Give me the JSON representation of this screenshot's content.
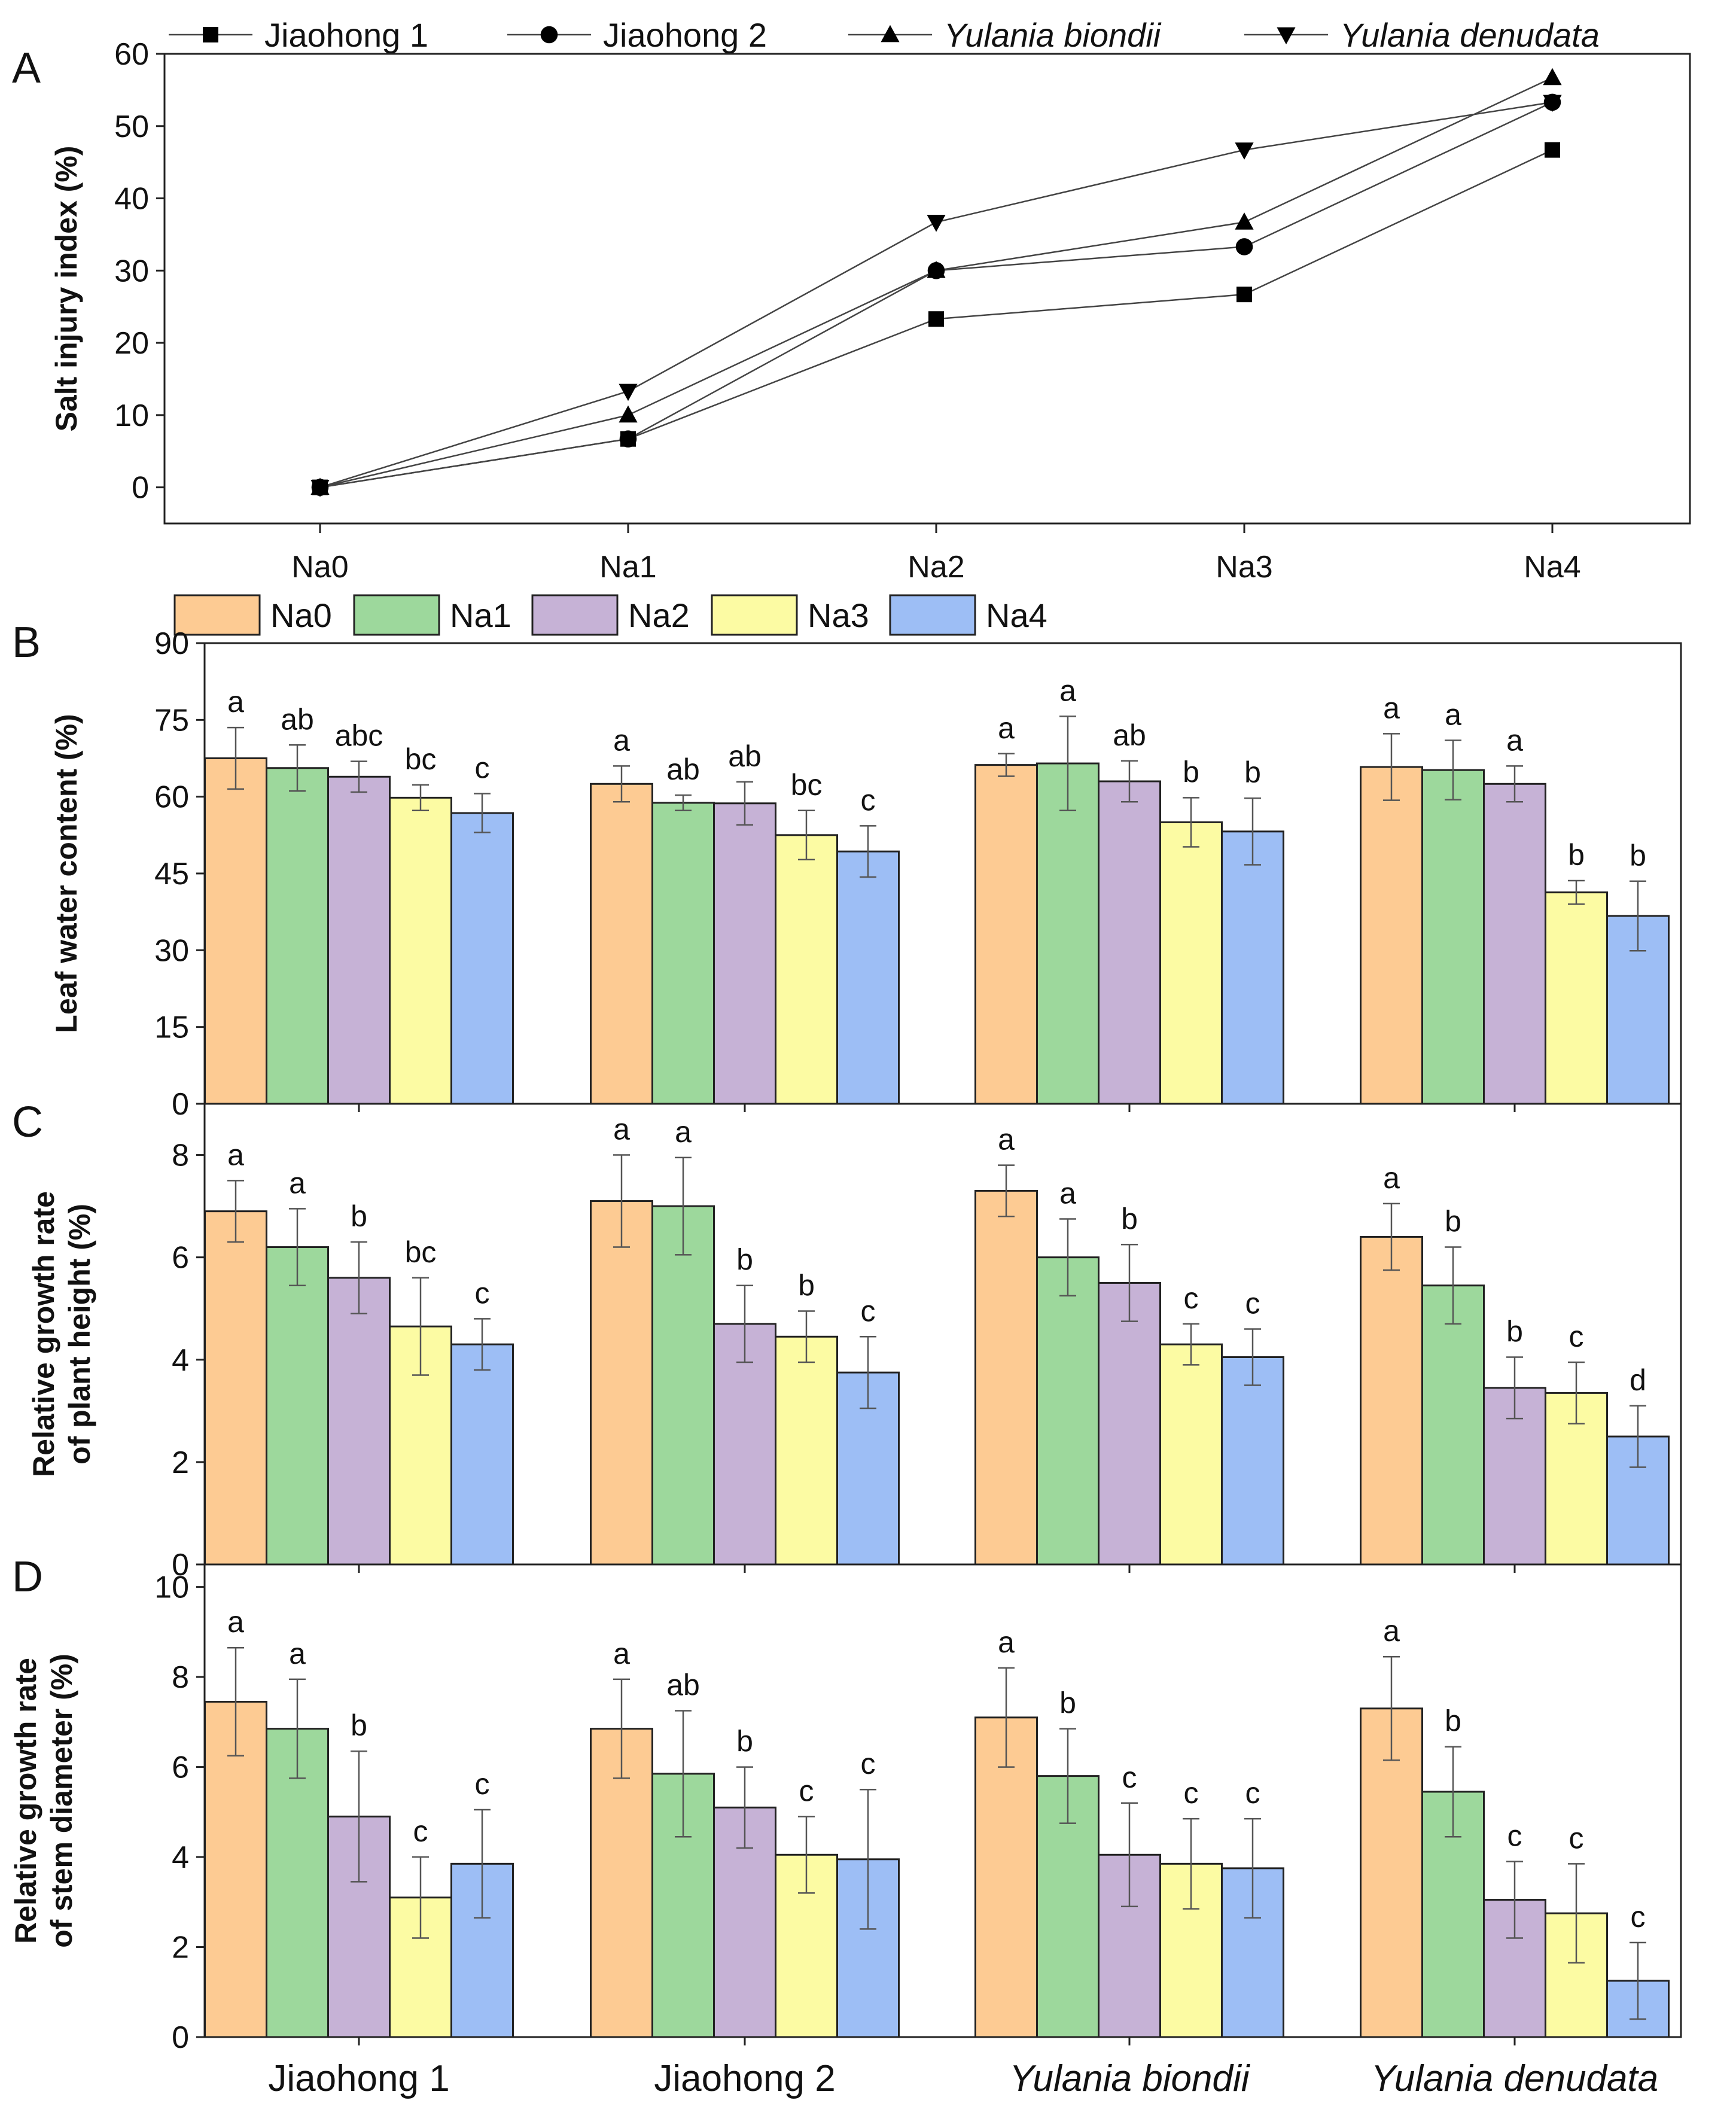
{
  "colors": {
    "Na0": "#FDCB93",
    "Na1": "#9DD89C",
    "Na2": "#C6B2D6",
    "Na3": "#FCFBA3",
    "Na4": "#9DBEF5"
  },
  "panelA": {
    "letter": "A",
    "legend": [
      {
        "label": "Jiaohong 1",
        "marker": "square",
        "italic": false
      },
      {
        "label": "Jiaohong 2",
        "marker": "circle",
        "italic": false
      },
      {
        "label": "Yulania biondii",
        "marker": "triangle-up",
        "italic": true
      },
      {
        "label": "Yulania denudata",
        "marker": "triangle-down",
        "italic": true
      }
    ]
  },
  "panelB": {
    "letter": "B"
  },
  "panelC": {
    "letter": "C"
  },
  "panelD": {
    "letter": "D"
  },
  "bar_legend": [
    "Na0",
    "Na1",
    "Na2",
    "Na3",
    "Na4"
  ],
  "chart_data": [
    {
      "id": "A",
      "type": "line",
      "title": "",
      "xlabel": "",
      "ylabel": "Salt injury index (%)",
      "categories": [
        "Na0",
        "Na1",
        "Na2",
        "Na3",
        "Na4"
      ],
      "ylim": [
        -5,
        60
      ],
      "yticks": [
        0,
        10,
        20,
        30,
        40,
        50,
        60
      ],
      "series": [
        {
          "name": "Jiaohong 1",
          "marker": "square",
          "values": [
            0,
            6.7,
            23.3,
            26.7,
            46.7
          ]
        },
        {
          "name": "Jiaohong 2",
          "marker": "circle",
          "values": [
            0,
            6.7,
            30.0,
            33.3,
            53.3
          ]
        },
        {
          "name": "Yulania biondii",
          "marker": "triangle-up",
          "values": [
            0,
            10.0,
            30.0,
            36.7,
            56.7
          ]
        },
        {
          "name": "Yulania denudata",
          "marker": "triangle-down",
          "values": [
            0,
            13.3,
            36.7,
            46.7,
            53.3
          ]
        }
      ]
    },
    {
      "id": "B",
      "type": "bar",
      "ylabel": "Leaf water content (%)",
      "xlabel": "",
      "ylim": [
        0,
        90
      ],
      "yticks": [
        0,
        15,
        30,
        45,
        60,
        75,
        90
      ],
      "categories": [
        "Jiaohong 1",
        "Jiaohong 2",
        "Yulania biondii",
        "Yulania denudata"
      ],
      "series": [
        {
          "name": "Na0",
          "values": [
            67.5,
            62.5,
            66.2,
            65.8
          ],
          "errors": [
            6,
            3.5,
            2.2,
            6.5
          ],
          "letters": [
            "a",
            "a",
            "a",
            "a"
          ]
        },
        {
          "name": "Na1",
          "values": [
            65.6,
            58.8,
            66.5,
            65.2
          ],
          "errors": [
            4.5,
            1.5,
            9.2,
            5.8
          ],
          "letters": [
            "ab",
            "ab",
            "a",
            "a"
          ]
        },
        {
          "name": "Na2",
          "values": [
            63.9,
            58.7,
            63.0,
            62.5
          ],
          "errors": [
            3,
            4.2,
            4,
            3.5
          ],
          "letters": [
            "abc",
            "ab",
            "ab",
            "a"
          ]
        },
        {
          "name": "Na3",
          "values": [
            59.8,
            52.5,
            55.0,
            41.3
          ],
          "errors": [
            2.5,
            4.8,
            4.8,
            2.3
          ],
          "letters": [
            "bc",
            "bc",
            "b",
            "b"
          ]
        },
        {
          "name": "Na4",
          "values": [
            56.8,
            49.3,
            53.2,
            36.7
          ],
          "errors": [
            3.8,
            5,
            6.5,
            6.8
          ],
          "letters": [
            "c",
            "c",
            "b",
            "b"
          ]
        }
      ]
    },
    {
      "id": "C",
      "type": "bar",
      "ylabel": "Relative growth rate of plant height (%)",
      "ylabel_lines": [
        "Relative growth rate",
        "of plant height (%)"
      ],
      "xlabel": "",
      "ylim": [
        0,
        9
      ],
      "yticks": [
        0,
        2,
        4,
        6,
        8
      ],
      "categories": [
        "Jiaohong 1",
        "Jiaohong 2",
        "Yulania biondii",
        "Yulania denudata"
      ],
      "series": [
        {
          "name": "Na0",
          "values": [
            6.9,
            7.1,
            7.3,
            6.4
          ],
          "errors": [
            0.6,
            0.9,
            0.5,
            0.65
          ],
          "letters": [
            "a",
            "a",
            "a",
            "a"
          ]
        },
        {
          "name": "Na1",
          "values": [
            6.2,
            7.0,
            6.0,
            5.45
          ],
          "errors": [
            0.75,
            0.95,
            0.75,
            0.75
          ],
          "letters": [
            "a",
            "a",
            "a",
            "b"
          ]
        },
        {
          "name": "Na2",
          "values": [
            5.6,
            4.7,
            5.5,
            3.45
          ],
          "errors": [
            0.7,
            0.75,
            0.75,
            0.6
          ],
          "letters": [
            "b",
            "b",
            "b",
            "b"
          ]
        },
        {
          "name": "Na3",
          "values": [
            4.65,
            4.45,
            4.3,
            3.35
          ],
          "errors": [
            0.95,
            0.5,
            0.4,
            0.6
          ],
          "letters": [
            "bc",
            "b",
            "c",
            "c"
          ]
        },
        {
          "name": "Na4",
          "values": [
            4.3,
            3.75,
            4.05,
            2.5
          ],
          "errors": [
            0.5,
            0.7,
            0.55,
            0.6
          ],
          "letters": [
            "c",
            "c",
            "c",
            "d"
          ]
        }
      ]
    },
    {
      "id": "D",
      "type": "bar",
      "ylabel": "Relative growth rate of stem diameter (%)",
      "ylabel_lines": [
        "Relative growth rate",
        "of stem diameter (%)"
      ],
      "xlabel": "",
      "ylim": [
        0,
        10.5
      ],
      "yticks": [
        0,
        2,
        4,
        6,
        8,
        10
      ],
      "categories": [
        "Jiaohong 1",
        "Jiaohong 2",
        "Yulania biondii",
        "Yulania denudata"
      ],
      "series": [
        {
          "name": "Na0",
          "values": [
            7.45,
            6.85,
            7.1,
            7.3
          ],
          "errors": [
            1.2,
            1.1,
            1.1,
            1.15
          ],
          "letters": [
            "a",
            "a",
            "a",
            "a"
          ]
        },
        {
          "name": "Na1",
          "values": [
            6.85,
            5.85,
            5.8,
            5.45
          ],
          "errors": [
            1.1,
            1.4,
            1.05,
            1.0
          ],
          "letters": [
            "a",
            "ab",
            "b",
            "b"
          ]
        },
        {
          "name": "Na2",
          "values": [
            4.9,
            5.1,
            4.05,
            3.05
          ],
          "errors": [
            1.45,
            0.9,
            1.15,
            0.85
          ],
          "letters": [
            "b",
            "b",
            "c",
            "c"
          ]
        },
        {
          "name": "Na3",
          "values": [
            3.1,
            4.05,
            3.85,
            2.75
          ],
          "errors": [
            0.9,
            0.85,
            1.0,
            1.1
          ],
          "letters": [
            "c",
            "c",
            "c",
            "c"
          ]
        },
        {
          "name": "Na4",
          "values": [
            3.85,
            3.95,
            3.75,
            1.25
          ],
          "errors": [
            1.2,
            1.55,
            1.1,
            0.85
          ],
          "letters": [
            "c",
            "c",
            "c",
            "c"
          ]
        }
      ]
    }
  ]
}
